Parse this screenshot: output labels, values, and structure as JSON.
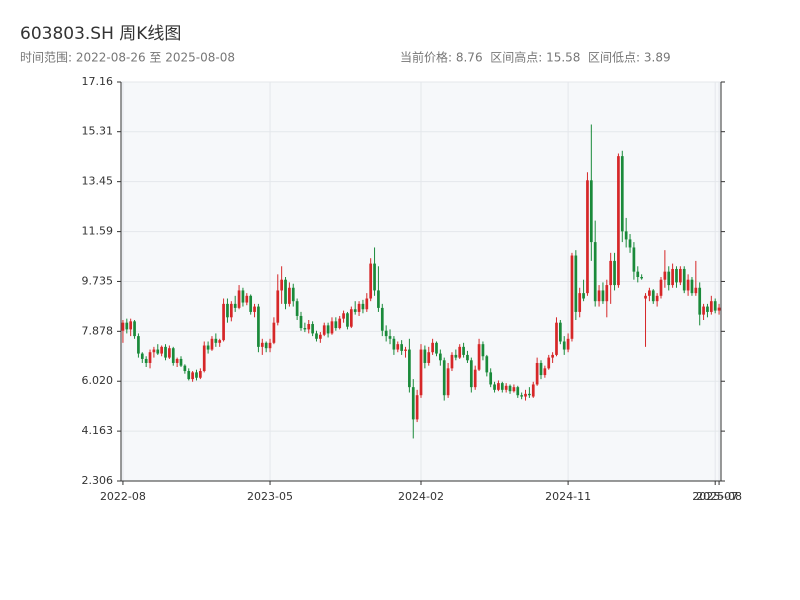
{
  "chart_data": {
    "type": "candlestick",
    "title": "603803.SH 周K线图",
    "subtitle": "时间范围: 2022-08-26 至 2025-08-08",
    "info": "当前价格: 8.76  区间高点: 15.58  区间低点: 3.89",
    "up_color": "#d62728",
    "down_color": "#1a8a3a",
    "grid": true,
    "ylim": [
      2.306,
      17.16
    ],
    "yticks": [
      2.306,
      4.163,
      {
        "value": 6.02,
        "label": "6.020"
      },
      7.878,
      9.735,
      11.59,
      13.45,
      15.31,
      17.16
    ],
    "categories": [
      "2022-08",
      null,
      null,
      null,
      null,
      null,
      null,
      null,
      null,
      null,
      null,
      null,
      null,
      null,
      null,
      null,
      null,
      null,
      null,
      null,
      null,
      null,
      null,
      null,
      null,
      null,
      null,
      null,
      null,
      null,
      null,
      null,
      null,
      null,
      null,
      null,
      null,
      null,
      "2023-05",
      null,
      null,
      null,
      null,
      null,
      null,
      null,
      null,
      null,
      null,
      null,
      null,
      null,
      null,
      null,
      null,
      null,
      null,
      null,
      null,
      null,
      null,
      null,
      null,
      null,
      null,
      null,
      null,
      null,
      null,
      null,
      null,
      null,
      null,
      null,
      null,
      null,
      null,
      "2024-02",
      null,
      null,
      null,
      null,
      null,
      null,
      null,
      null,
      null,
      null,
      null,
      null,
      null,
      null,
      null,
      null,
      null,
      null,
      null,
      null,
      null,
      null,
      null,
      null,
      null,
      null,
      null,
      null,
      null,
      null,
      null,
      null,
      null,
      null,
      null,
      null,
      null,
      "2024-11",
      null,
      null,
      null,
      null,
      null,
      null,
      null,
      null,
      null,
      null,
      null,
      null,
      null,
      null,
      null,
      null,
      null,
      null,
      null,
      null,
      null,
      null,
      null,
      null,
      null,
      null,
      null,
      null,
      null,
      null,
      null,
      null,
      null,
      null,
      null,
      null,
      null,
      "2025-07",
      "2025-08"
    ],
    "ohlc": [
      [
        7.9,
        8.3,
        7.45,
        8.2
      ],
      [
        8.2,
        8.35,
        7.8,
        7.95
      ],
      [
        7.95,
        8.35,
        7.7,
        8.25
      ],
      [
        8.25,
        8.3,
        7.6,
        7.7
      ],
      [
        7.7,
        7.8,
        6.9,
        7.05
      ],
      [
        7.05,
        7.1,
        6.7,
        6.85
      ],
      [
        6.85,
        6.95,
        6.55,
        6.7
      ],
      [
        6.7,
        7.2,
        6.5,
        7.1
      ],
      [
        7.1,
        7.3,
        6.9,
        7.2
      ],
      [
        7.2,
        7.4,
        7.0,
        7.05
      ],
      [
        7.05,
        7.35,
        6.95,
        7.3
      ],
      [
        7.3,
        7.4,
        6.8,
        6.9
      ],
      [
        6.9,
        7.35,
        6.85,
        7.25
      ],
      [
        7.25,
        7.3,
        6.6,
        6.7
      ],
      [
        6.7,
        6.9,
        6.55,
        6.85
      ],
      [
        6.85,
        6.95,
        6.55,
        6.6
      ],
      [
        6.6,
        6.65,
        6.3,
        6.4
      ],
      [
        6.4,
        6.5,
        6.05,
        6.1
      ],
      [
        6.1,
        6.4,
        6.0,
        6.35
      ],
      [
        6.35,
        6.45,
        6.05,
        6.15
      ],
      [
        6.15,
        6.5,
        6.1,
        6.4
      ],
      [
        6.4,
        7.5,
        6.35,
        7.35
      ],
      [
        7.35,
        7.5,
        7.05,
        7.2
      ],
      [
        7.2,
        7.7,
        7.15,
        7.6
      ],
      [
        7.6,
        7.8,
        7.3,
        7.45
      ],
      [
        7.45,
        7.6,
        7.3,
        7.55
      ],
      [
        7.55,
        9.1,
        7.5,
        8.9
      ],
      [
        8.9,
        9.1,
        8.2,
        8.4
      ],
      [
        8.4,
        9.0,
        8.25,
        8.9
      ],
      [
        8.9,
        9.2,
        8.6,
        8.75
      ],
      [
        8.75,
        9.6,
        8.7,
        9.4
      ],
      [
        9.4,
        9.5,
        8.8,
        8.95
      ],
      [
        8.95,
        9.3,
        8.85,
        9.2
      ],
      [
        9.2,
        9.25,
        8.5,
        8.6
      ],
      [
        8.6,
        8.9,
        8.4,
        8.8
      ],
      [
        8.8,
        8.9,
        7.1,
        7.3
      ],
      [
        7.3,
        7.6,
        7.0,
        7.45
      ],
      [
        7.45,
        7.5,
        7.1,
        7.25
      ],
      [
        7.25,
        7.6,
        7.1,
        7.45
      ],
      [
        7.45,
        8.4,
        7.4,
        8.2
      ],
      [
        8.2,
        10.0,
        8.1,
        9.4
      ],
      [
        9.4,
        10.3,
        8.9,
        9.8
      ],
      [
        9.8,
        9.9,
        8.7,
        8.9
      ],
      [
        8.9,
        9.7,
        8.8,
        9.5
      ],
      [
        9.5,
        9.65,
        8.8,
        9.0
      ],
      [
        9.0,
        9.1,
        8.3,
        8.45
      ],
      [
        8.45,
        8.6,
        7.9,
        8.0
      ],
      [
        8.0,
        8.2,
        7.85,
        7.95
      ],
      [
        7.95,
        8.3,
        7.8,
        8.15
      ],
      [
        8.15,
        8.25,
        7.7,
        7.8
      ],
      [
        7.8,
        7.9,
        7.5,
        7.6
      ],
      [
        7.6,
        7.85,
        7.45,
        7.75
      ],
      [
        7.75,
        8.2,
        7.7,
        8.1
      ],
      [
        8.1,
        8.2,
        7.65,
        7.8
      ],
      [
        7.8,
        8.4,
        7.75,
        8.25
      ],
      [
        8.25,
        8.4,
        7.9,
        8.0
      ],
      [
        8.0,
        8.45,
        7.95,
        8.35
      ],
      [
        8.35,
        8.65,
        8.2,
        8.55
      ],
      [
        8.55,
        8.6,
        7.95,
        8.05
      ],
      [
        8.05,
        8.8,
        8.0,
        8.7
      ],
      [
        8.7,
        9.0,
        8.5,
        8.6
      ],
      [
        8.6,
        9.0,
        8.45,
        8.9
      ],
      [
        8.9,
        9.05,
        8.55,
        8.7
      ],
      [
        8.7,
        9.3,
        8.6,
        9.1
      ],
      [
        9.1,
        10.6,
        9.0,
        10.4
      ],
      [
        10.4,
        11.0,
        9.2,
        9.4
      ],
      [
        9.4,
        10.3,
        8.6,
        8.75
      ],
      [
        8.75,
        8.9,
        7.7,
        7.9
      ],
      [
        7.9,
        8.1,
        7.5,
        7.7
      ],
      [
        7.7,
        7.95,
        7.4,
        7.6
      ],
      [
        7.6,
        7.7,
        7.0,
        7.2
      ],
      [
        7.2,
        7.5,
        7.1,
        7.4
      ],
      [
        7.4,
        7.55,
        7.0,
        7.15
      ],
      [
        7.15,
        7.3,
        6.9,
        7.2
      ],
      [
        7.2,
        7.6,
        5.6,
        5.8
      ],
      [
        5.8,
        6.1,
        3.89,
        4.6
      ],
      [
        4.6,
        5.7,
        4.5,
        5.5
      ],
      [
        5.5,
        7.4,
        5.4,
        7.2
      ],
      [
        7.2,
        7.35,
        6.5,
        6.7
      ],
      [
        6.7,
        7.3,
        6.6,
        7.1
      ],
      [
        7.1,
        7.6,
        7.0,
        7.45
      ],
      [
        7.45,
        7.5,
        6.95,
        7.05
      ],
      [
        7.05,
        7.2,
        6.6,
        6.8
      ],
      [
        6.8,
        6.9,
        5.3,
        5.5
      ],
      [
        5.5,
        6.7,
        5.4,
        6.5
      ],
      [
        6.5,
        7.1,
        6.4,
        7.0
      ],
      [
        7.0,
        7.2,
        6.8,
        6.9
      ],
      [
        6.9,
        7.4,
        6.85,
        7.3
      ],
      [
        7.3,
        7.45,
        6.9,
        7.0
      ],
      [
        7.0,
        7.15,
        6.7,
        6.8
      ],
      [
        6.8,
        6.9,
        5.6,
        5.8
      ],
      [
        5.8,
        6.6,
        5.7,
        6.45
      ],
      [
        6.45,
        7.6,
        6.4,
        7.4
      ],
      [
        7.4,
        7.5,
        6.8,
        6.95
      ],
      [
        6.95,
        7.0,
        6.2,
        6.35
      ],
      [
        6.35,
        6.5,
        5.8,
        5.9
      ],
      [
        5.9,
        6.0,
        5.6,
        5.7
      ],
      [
        5.7,
        6.05,
        5.65,
        5.95
      ],
      [
        5.95,
        6.0,
        5.6,
        5.7
      ],
      [
        5.7,
        5.95,
        5.6,
        5.85
      ],
      [
        5.85,
        5.9,
        5.55,
        5.65
      ],
      [
        5.65,
        5.9,
        5.6,
        5.8
      ],
      [
        5.8,
        5.85,
        5.4,
        5.5
      ],
      [
        5.5,
        5.6,
        5.35,
        5.45
      ],
      [
        5.45,
        5.7,
        5.3,
        5.55
      ],
      [
        5.55,
        5.8,
        5.4,
        5.5
      ],
      [
        5.45,
        6.0,
        5.4,
        5.9
      ],
      [
        5.9,
        6.9,
        5.85,
        6.7
      ],
      [
        6.7,
        6.8,
        6.1,
        6.25
      ],
      [
        6.25,
        6.6,
        6.15,
        6.5
      ],
      [
        6.5,
        7.0,
        6.45,
        6.9
      ],
      [
        6.9,
        7.1,
        6.7,
        7.0
      ],
      [
        7.0,
        8.4,
        6.95,
        8.2
      ],
      [
        8.2,
        8.3,
        7.4,
        7.5
      ],
      [
        7.5,
        7.7,
        7.0,
        7.2
      ],
      [
        7.2,
        7.8,
        7.1,
        7.6
      ],
      [
        7.6,
        10.8,
        7.5,
        10.7
      ],
      [
        10.7,
        10.9,
        8.3,
        8.6
      ],
      [
        8.6,
        9.5,
        8.4,
        9.3
      ],
      [
        9.3,
        9.8,
        9.0,
        9.1
      ],
      [
        9.3,
        13.8,
        9.2,
        13.5
      ],
      [
        13.5,
        15.58,
        10.5,
        11.2
      ],
      [
        11.2,
        12.0,
        8.8,
        9.0
      ],
      [
        9.0,
        9.6,
        8.8,
        9.4
      ],
      [
        9.4,
        9.7,
        8.9,
        9.0
      ],
      [
        9.0,
        9.8,
        8.4,
        9.6
      ],
      [
        9.6,
        10.8,
        8.9,
        10.5
      ],
      [
        10.5,
        10.8,
        9.4,
        9.6
      ],
      [
        9.6,
        14.5,
        9.5,
        14.4
      ],
      [
        14.4,
        14.6,
        11.2,
        11.6
      ],
      [
        11.6,
        12.1,
        11.0,
        11.3
      ],
      [
        11.3,
        11.5,
        10.8,
        11.0
      ],
      [
        11.0,
        11.2,
        9.8,
        10.1
      ],
      [
        10.1,
        10.3,
        9.7,
        9.9
      ],
      [
        9.9,
        10.0,
        9.8,
        9.85
      ],
      [
        9.1,
        9.3,
        7.3,
        9.2
      ],
      [
        9.2,
        9.5,
        9.0,
        9.4
      ],
      [
        9.4,
        9.45,
        8.9,
        9.0
      ],
      [
        9.0,
        9.3,
        8.8,
        9.2
      ],
      [
        9.2,
        9.9,
        9.1,
        9.8
      ],
      [
        9.8,
        10.9,
        9.5,
        10.1
      ],
      [
        10.1,
        10.3,
        9.4,
        9.6
      ],
      [
        9.6,
        10.4,
        9.5,
        10.2
      ],
      [
        10.2,
        10.3,
        9.5,
        9.7
      ],
      [
        9.7,
        10.3,
        9.6,
        10.2
      ],
      [
        10.2,
        10.3,
        9.3,
        9.4
      ],
      [
        9.4,
        10.0,
        9.2,
        9.8
      ],
      [
        9.8,
        9.9,
        9.2,
        9.3
      ],
      [
        9.3,
        10.5,
        9.2,
        9.5
      ],
      [
        9.5,
        9.7,
        8.1,
        8.5
      ],
      [
        8.5,
        8.9,
        8.3,
        8.8
      ],
      [
        8.8,
        8.9,
        8.4,
        8.6
      ],
      [
        8.6,
        9.2,
        8.5,
        9.0
      ],
      [
        9.0,
        9.1,
        8.55,
        8.65
      ],
      [
        8.65,
        8.9,
        8.5,
        8.76
      ]
    ]
  }
}
